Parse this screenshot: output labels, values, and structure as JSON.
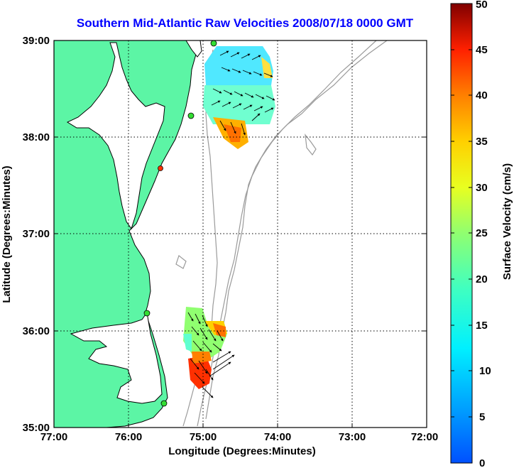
{
  "title": "Southern Mid-Atlantic Raw Velocities 2008/07/18 0000 GMT",
  "xlabel": "Longitude (Degrees:Minutes)",
  "ylabel": "Latitude (Degrees:Minutes)",
  "x_ticks": [
    "77:00",
    "76:00",
    "75:00",
    "74:00",
    "73:00",
    "72:00"
  ],
  "y_ticks": [
    "39:00",
    "38:00",
    "37:00",
    "36:00",
    "35:00"
  ],
  "colorbar": {
    "label": "Surface Velocity (cm/s)",
    "ticks": [
      "50",
      "45",
      "40",
      "35",
      "30",
      "25",
      "20",
      "15",
      "10",
      "5",
      "0"
    ]
  },
  "colors": {
    "land": "#5cf5a5",
    "coast": "#000000",
    "bathymetry": "#9a9a9a",
    "station": "#33dd33",
    "station_alt": "#ff3300",
    "title": "#0000ff"
  }
}
